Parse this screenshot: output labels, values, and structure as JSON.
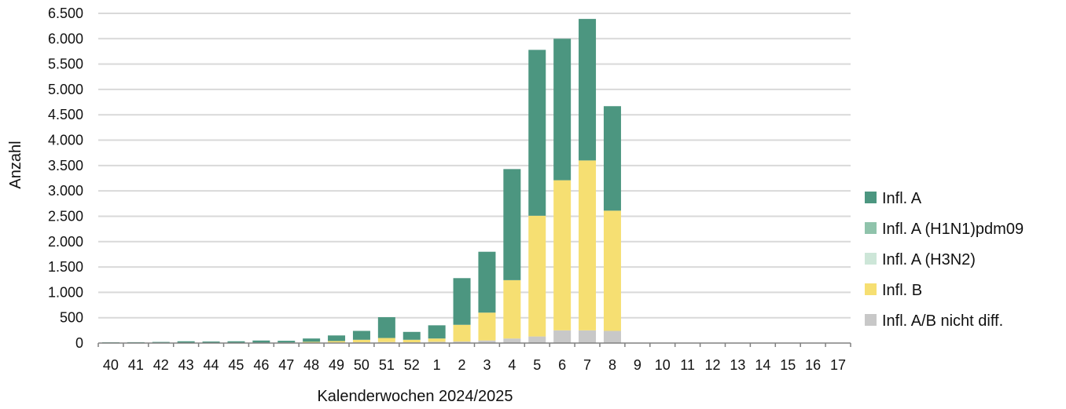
{
  "chart_data": {
    "type": "bar",
    "stacked": true,
    "xlabel": "Kalenderwochen 2024/2025",
    "ylabel": "Anzahl",
    "ylim": [
      0,
      6500
    ],
    "yticks": [
      0,
      500,
      1000,
      1500,
      2000,
      2500,
      3000,
      3500,
      4000,
      4500,
      5000,
      5500,
      6000,
      6500
    ],
    "ytick_labels": [
      "0",
      "500",
      "1.000",
      "1.500",
      "2.000",
      "2.500",
      "3.000",
      "3.500",
      "4.000",
      "4.500",
      "5.000",
      "5.500",
      "6.000",
      "6.500"
    ],
    "grid": true,
    "legend_position": "right",
    "categories": [
      "40",
      "41",
      "42",
      "43",
      "44",
      "45",
      "46",
      "47",
      "48",
      "49",
      "50",
      "51",
      "52",
      "1",
      "2",
      "3",
      "4",
      "5",
      "6",
      "7",
      "8",
      "9",
      "10",
      "11",
      "12",
      "13",
      "14",
      "15",
      "16",
      "17"
    ],
    "series": [
      {
        "name": "Infl. A/B nicht diff.",
        "color": "#c8c8c8",
        "values": [
          0,
          0,
          0,
          0,
          0,
          0,
          0,
          0,
          5,
          10,
          15,
          20,
          15,
          25,
          30,
          50,
          90,
          130,
          250,
          250,
          240,
          0,
          0,
          0,
          0,
          0,
          0,
          0,
          0,
          0
        ]
      },
      {
        "name": "Infl. B",
        "color": "#f6df72",
        "values": [
          3,
          3,
          4,
          5,
          5,
          5,
          8,
          10,
          20,
          30,
          50,
          80,
          50,
          65,
          330,
          550,
          1150,
          2380,
          2960,
          3350,
          2370,
          0,
          0,
          0,
          0,
          0,
          0,
          0,
          0,
          0
        ]
      },
      {
        "name": "Infl. A (H3N2)",
        "color": "#cde6d8",
        "values": [
          0,
          0,
          0,
          0,
          0,
          0,
          0,
          0,
          0,
          0,
          0,
          0,
          0,
          0,
          0,
          0,
          0,
          0,
          0,
          0,
          0,
          0,
          0,
          0,
          0,
          0,
          0,
          0,
          0,
          0
        ]
      },
      {
        "name": "Infl. A (H1N1)pdm09",
        "color": "#8fc3ab",
        "values": [
          0,
          0,
          0,
          0,
          0,
          0,
          0,
          0,
          0,
          0,
          0,
          0,
          0,
          0,
          0,
          0,
          0,
          0,
          0,
          0,
          0,
          0,
          0,
          0,
          0,
          0,
          0,
          0,
          0,
          0
        ]
      },
      {
        "name": "Infl. A",
        "color": "#4c9680",
        "values": [
          12,
          14,
          18,
          30,
          25,
          30,
          42,
          35,
          65,
          110,
          175,
          410,
          155,
          260,
          920,
          1200,
          2190,
          3270,
          2790,
          2790,
          2060,
          0,
          0,
          0,
          0,
          0,
          0,
          0,
          0,
          0
        ]
      }
    ],
    "legend_order": [
      "Infl. A",
      "Infl. A (H1N1)pdm09",
      "Infl. A (H3N2)",
      "Infl. B",
      "Infl. A/B nicht diff."
    ]
  }
}
